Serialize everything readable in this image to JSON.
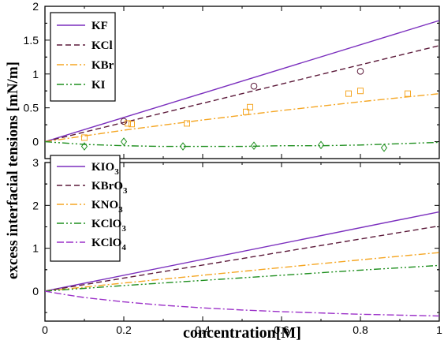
{
  "figure": {
    "ylabel": "excess interfacial tensions [mN/m]",
    "xlabel": "concentration[M]"
  },
  "chart_data": [
    {
      "type": "line",
      "xlim": [
        0,
        1
      ],
      "ylim": [
        -0.25,
        2
      ],
      "xticks": [
        0,
        0.2,
        0.4,
        0.6,
        0.8,
        1
      ],
      "xtick_labels_visible": false,
      "yticks": [
        0,
        0.5,
        1,
        1.5,
        2
      ],
      "ytick_labels": [
        "0",
        "0.5",
        "1",
        "1.5",
        "2"
      ],
      "legend_position": "top-left",
      "grid": false,
      "series": [
        {
          "name": "KF",
          "color": "#7b2fbe",
          "dash": "solid",
          "x": [
            0,
            1
          ],
          "y": [
            0,
            1.79
          ]
        },
        {
          "name": "KCl",
          "color": "#5c1a3a",
          "dash": "dashed",
          "x": [
            0,
            1
          ],
          "y": [
            0,
            1.42
          ]
        },
        {
          "name": "KBr",
          "color": "#f5a623",
          "dash": "dashdot",
          "x": [
            0,
            0.2,
            0.4,
            0.6,
            0.8,
            1
          ],
          "y": [
            0,
            0.17,
            0.32,
            0.46,
            0.59,
            0.71
          ]
        },
        {
          "name": "KI",
          "color": "#1f8f1f",
          "dash": "dashdotdot",
          "x": [
            0,
            0.1,
            0.2,
            0.3,
            0.4,
            0.5,
            0.6,
            0.7,
            0.8,
            0.9,
            1
          ],
          "y": [
            0,
            -0.04,
            -0.06,
            -0.07,
            -0.07,
            -0.07,
            -0.06,
            -0.06,
            -0.05,
            -0.03,
            -0.01
          ]
        }
      ],
      "markers": [
        {
          "series": "KCl",
          "shape": "circle",
          "color": "#5c1a3a",
          "x": [
            0.2,
            0.53,
            0.8
          ],
          "y": [
            0.3,
            0.82,
            1.04
          ]
        },
        {
          "series": "KBr",
          "shape": "square",
          "color": "#f5a623",
          "x": [
            0.1,
            0.21,
            0.22,
            0.36,
            0.51,
            0.52,
            0.77,
            0.8,
            0.92
          ],
          "y": [
            0.06,
            0.27,
            0.26,
            0.27,
            0.44,
            0.51,
            0.71,
            0.75,
            0.71
          ]
        },
        {
          "series": "KI",
          "shape": "diamond",
          "color": "#1f8f1f",
          "x": [
            0.1,
            0.2,
            0.35,
            0.53,
            0.7,
            0.86
          ],
          "y": [
            -0.07,
            0,
            -0.07,
            -0.06,
            -0.05,
            -0.09
          ]
        }
      ]
    },
    {
      "type": "line",
      "xlim": [
        0,
        1
      ],
      "ylim": [
        -0.7,
        3
      ],
      "xticks": [
        0,
        0.2,
        0.4,
        0.6,
        0.8,
        1
      ],
      "xtick_labels": [
        "0",
        "0.2",
        "0.4",
        "0.6",
        "0.8",
        "1"
      ],
      "yticks": [
        0,
        1,
        2,
        3
      ],
      "ytick_labels": [
        "0",
        "1",
        "2",
        "3"
      ],
      "legend_position": "top-left",
      "grid": false,
      "series": [
        {
          "name": "KIO3",
          "label_base": "KIO",
          "label_sub": "3",
          "color": "#7b2fbe",
          "dash": "solid",
          "x": [
            0,
            1
          ],
          "y": [
            0,
            1.85
          ]
        },
        {
          "name": "KBrO3",
          "label_base": "KBrO",
          "label_sub": "3",
          "color": "#5c1a3a",
          "dash": "dashed",
          "x": [
            0,
            1
          ],
          "y": [
            0,
            1.52
          ]
        },
        {
          "name": "KNO3",
          "label_base": "KNO",
          "label_sub": "3",
          "color": "#f5a623",
          "dash": "dashdot",
          "x": [
            0,
            0.2,
            0.4,
            0.6,
            0.8,
            1
          ],
          "y": [
            0,
            0.19,
            0.37,
            0.55,
            0.73,
            0.9
          ]
        },
        {
          "name": "KClO3",
          "label_base": "KClO",
          "label_sub": "3",
          "color": "#1f8f1f",
          "dash": "dashdotdot",
          "x": [
            0,
            0.2,
            0.4,
            0.6,
            0.8,
            1
          ],
          "y": [
            0,
            0.13,
            0.25,
            0.37,
            0.49,
            0.6
          ]
        },
        {
          "name": "KClO4",
          "label_base": "KClO",
          "label_sub": "4",
          "color": "#9b30c8",
          "dash": "dashdashdot",
          "x": [
            0,
            0.05,
            0.1,
            0.2,
            0.3,
            0.4,
            0.5,
            0.6,
            0.7,
            0.8,
            0.9,
            1
          ],
          "y": [
            0,
            -0.08,
            -0.15,
            -0.25,
            -0.33,
            -0.39,
            -0.44,
            -0.48,
            -0.51,
            -0.54,
            -0.56,
            -0.58
          ]
        }
      ]
    }
  ]
}
